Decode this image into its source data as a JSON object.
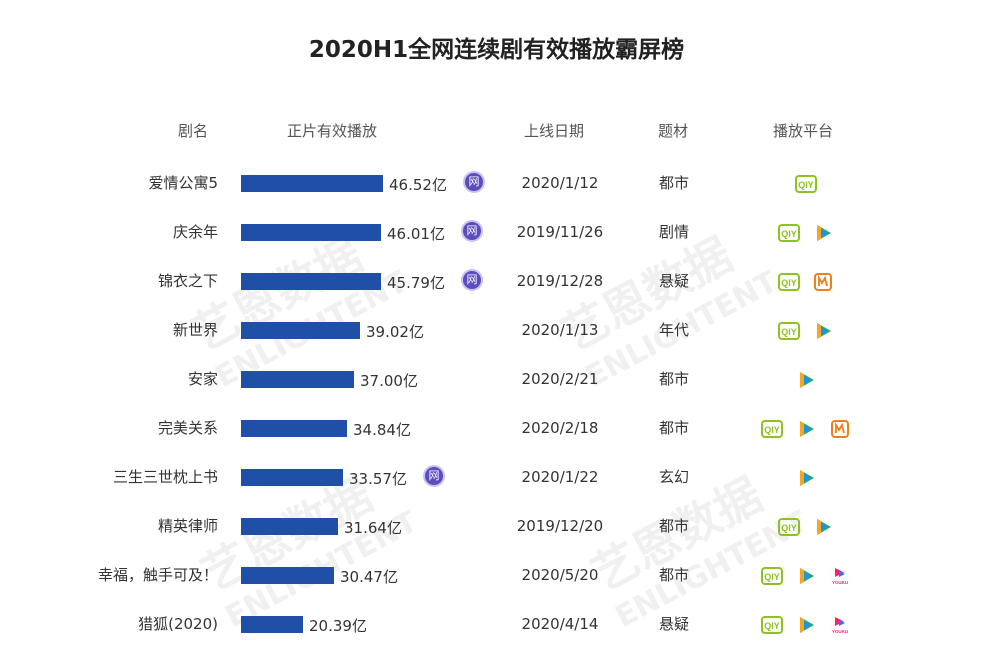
{
  "chart_data": {
    "type": "bar",
    "title": "2020H1全网连续剧有效播放霸屏榜",
    "columns": [
      "剧名",
      "正片有效播放",
      "上线日期",
      "题材",
      "播放平台"
    ],
    "value_unit": "亿",
    "rows": [
      {
        "name": "爱情公寓5",
        "value": 46.52,
        "value_label": "46.52亿",
        "wang": true,
        "date": "2020/1/12",
        "genre": "都市",
        "platforms": [
          "iqiyi"
        ]
      },
      {
        "name": "庆余年",
        "value": 46.01,
        "value_label": "46.01亿",
        "wang": true,
        "date": "2019/11/26",
        "genre": "剧情",
        "platforms": [
          "iqiyi",
          "tencent"
        ]
      },
      {
        "name": "锦衣之下",
        "value": 45.79,
        "value_label": "45.79亿",
        "wang": true,
        "date": "2019/12/28",
        "genre": "悬疑",
        "platforms": [
          "iqiyi",
          "mango"
        ]
      },
      {
        "name": "新世界",
        "value": 39.02,
        "value_label": "39.02亿",
        "wang": false,
        "date": "2020/1/13",
        "genre": "年代",
        "platforms": [
          "iqiyi",
          "tencent"
        ]
      },
      {
        "name": "安家",
        "value": 37.0,
        "value_label": "37.00亿",
        "wang": false,
        "date": "2020/2/21",
        "genre": "都市",
        "platforms": [
          "tencent"
        ]
      },
      {
        "name": "完美关系",
        "value": 34.84,
        "value_label": "34.84亿",
        "wang": false,
        "date": "2020/2/18",
        "genre": "都市",
        "platforms": [
          "iqiyi",
          "tencent",
          "mango"
        ]
      },
      {
        "name": "三生三世枕上书",
        "value": 33.57,
        "value_label": "33.57亿",
        "wang": true,
        "date": "2020/1/22",
        "genre": "玄幻",
        "platforms": [
          "tencent"
        ]
      },
      {
        "name": "精英律师",
        "value": 31.64,
        "value_label": "31.64亿",
        "wang": false,
        "date": "2019/12/20",
        "genre": "都市",
        "platforms": [
          "iqiyi",
          "tencent"
        ]
      },
      {
        "name": "幸福，触手可及！",
        "value": 30.47,
        "value_label": "30.47亿",
        "wang": false,
        "date": "2020/5/20",
        "genre": "都市",
        "platforms": [
          "iqiyi",
          "tencent",
          "youku"
        ]
      },
      {
        "name": "猎狐(2020)",
        "value": 20.39,
        "value_label": "20.39亿",
        "wang": false,
        "date": "2020/4/14",
        "genre": "悬疑",
        "platforms": [
          "iqiyi",
          "tencent",
          "youku"
        ]
      }
    ],
    "xlim": [
      0,
      46.52
    ]
  },
  "wang_badge": "网",
  "watermark": {
    "logo": "艺恩数据",
    "sub": "ENLIGHTENT"
  },
  "platform_labels": {
    "iqiyi": "QIY",
    "youku": "YOUKU"
  },
  "colors": {
    "bar": "#1f4fa6",
    "wang": "#5b4dbd",
    "iqiyi": "#8dc21f",
    "tencent_green": "#20b062",
    "tencent_blue": "#1f8ff0",
    "tencent_orange": "#f6a623",
    "mango": "#f07e1b",
    "youku_pink": "#ff1f6e",
    "youku_blue": "#1f7cff"
  }
}
